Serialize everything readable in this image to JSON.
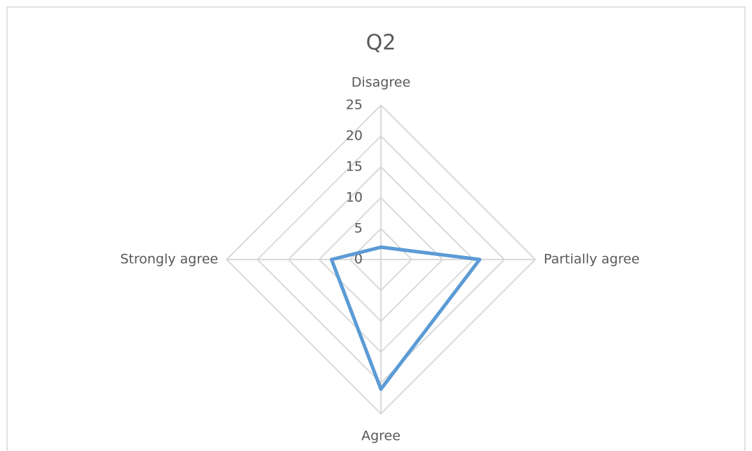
{
  "chart_data": {
    "type": "radar",
    "title": "Q2",
    "categories": [
      "Disagree",
      "Partially agree",
      "Agree",
      "Strongly agree"
    ],
    "values": [
      2,
      16,
      21,
      8
    ],
    "color": "#5b9bd5",
    "ylim": [
      0,
      25
    ],
    "yticks": [
      0,
      5,
      10,
      15,
      20,
      25
    ],
    "grid": true
  }
}
